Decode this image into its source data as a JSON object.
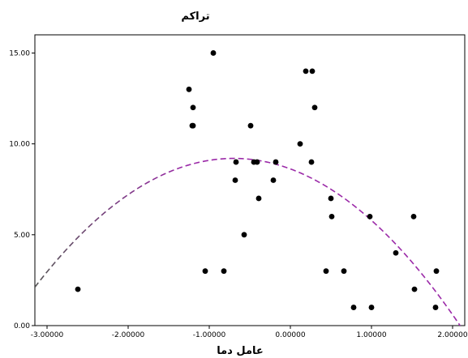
{
  "chart_data": {
    "type": "scatter",
    "title": "تراکم",
    "xlabel": "عامل دما",
    "ylabel": "",
    "xlim": [
      -3.15,
      2.15
    ],
    "ylim": [
      0,
      16
    ],
    "x_ticks": [
      "-3.00000",
      "-2.00000",
      "-1.00000",
      "0.00000",
      "1.00000",
      "2.00000"
    ],
    "y_ticks": [
      "0.00",
      "5.00",
      "10.00",
      "15.00"
    ],
    "grid": false,
    "points": [
      {
        "x": -2.62,
        "y": 2
      },
      {
        "x": -1.25,
        "y": 13
      },
      {
        "x": -1.2,
        "y": 12
      },
      {
        "x": -1.2,
        "y": 11
      },
      {
        "x": -1.21,
        "y": 11
      },
      {
        "x": -1.05,
        "y": 3
      },
      {
        "x": -0.95,
        "y": 15
      },
      {
        "x": -0.82,
        "y": 3
      },
      {
        "x": -0.67,
        "y": 9
      },
      {
        "x": -0.68,
        "y": 8
      },
      {
        "x": -0.57,
        "y": 5
      },
      {
        "x": -0.49,
        "y": 11
      },
      {
        "x": -0.45,
        "y": 9
      },
      {
        "x": -0.41,
        "y": 9
      },
      {
        "x": -0.39,
        "y": 7
      },
      {
        "x": -0.21,
        "y": 8
      },
      {
        "x": -0.18,
        "y": 9
      },
      {
        "x": 0.12,
        "y": 10
      },
      {
        "x": 0.19,
        "y": 14
      },
      {
        "x": 0.27,
        "y": 14
      },
      {
        "x": 0.26,
        "y": 9
      },
      {
        "x": 0.3,
        "y": 12
      },
      {
        "x": 0.44,
        "y": 3
      },
      {
        "x": 0.5,
        "y": 7
      },
      {
        "x": 0.51,
        "y": 6
      },
      {
        "x": 0.66,
        "y": 3
      },
      {
        "x": 0.78,
        "y": 1
      },
      {
        "x": 0.98,
        "y": 6
      },
      {
        "x": 1.0,
        "y": 1
      },
      {
        "x": 1.3,
        "y": 4
      },
      {
        "x": 1.52,
        "y": 6
      },
      {
        "x": 1.53,
        "y": 2
      },
      {
        "x": 1.8,
        "y": 3
      },
      {
        "x": 1.79,
        "y": 1
      }
    ],
    "fit_curve": {
      "type": "quadratic",
      "vertex_x": -0.7,
      "vertex_y": 9.2,
      "a": -1.18,
      "style": "dashed",
      "color_start": "#555555",
      "color_end": "#9b2aa8"
    },
    "colors": {
      "point": "#000000",
      "axis": "#000000"
    }
  }
}
